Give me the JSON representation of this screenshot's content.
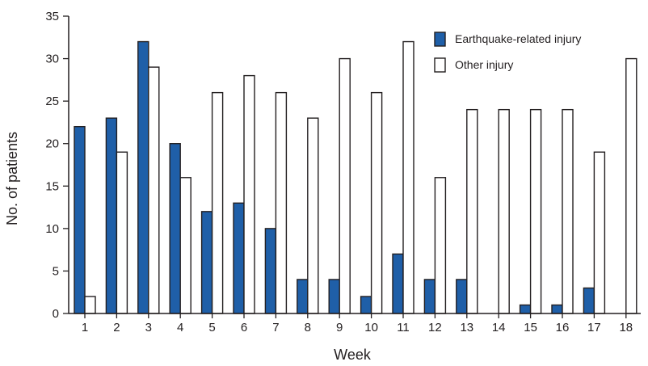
{
  "chart_data": {
    "type": "bar",
    "xlabel": "Week",
    "ylabel": "No. of patients",
    "ylim": [
      0,
      35
    ],
    "yticks": [
      0,
      5,
      10,
      15,
      20,
      25,
      30,
      35
    ],
    "categories": [
      "1",
      "2",
      "3",
      "4",
      "5",
      "6",
      "7",
      "8",
      "9",
      "10",
      "11",
      "12",
      "13",
      "14",
      "15",
      "16",
      "17",
      "18"
    ],
    "series": [
      {
        "name": "Earthquake-related injury",
        "color": "#1f5fa8",
        "values": [
          22,
          23,
          32,
          20,
          12,
          13,
          10,
          4,
          4,
          2,
          7,
          4,
          4,
          0,
          1,
          1,
          3,
          0
        ]
      },
      {
        "name": "Other injury",
        "color": "#ffffff",
        "values": [
          2,
          19,
          29,
          16,
          26,
          28,
          26,
          23,
          30,
          26,
          32,
          16,
          24,
          24,
          24,
          24,
          19,
          30
        ]
      }
    ],
    "grid": false,
    "legend_position": "top-right"
  }
}
